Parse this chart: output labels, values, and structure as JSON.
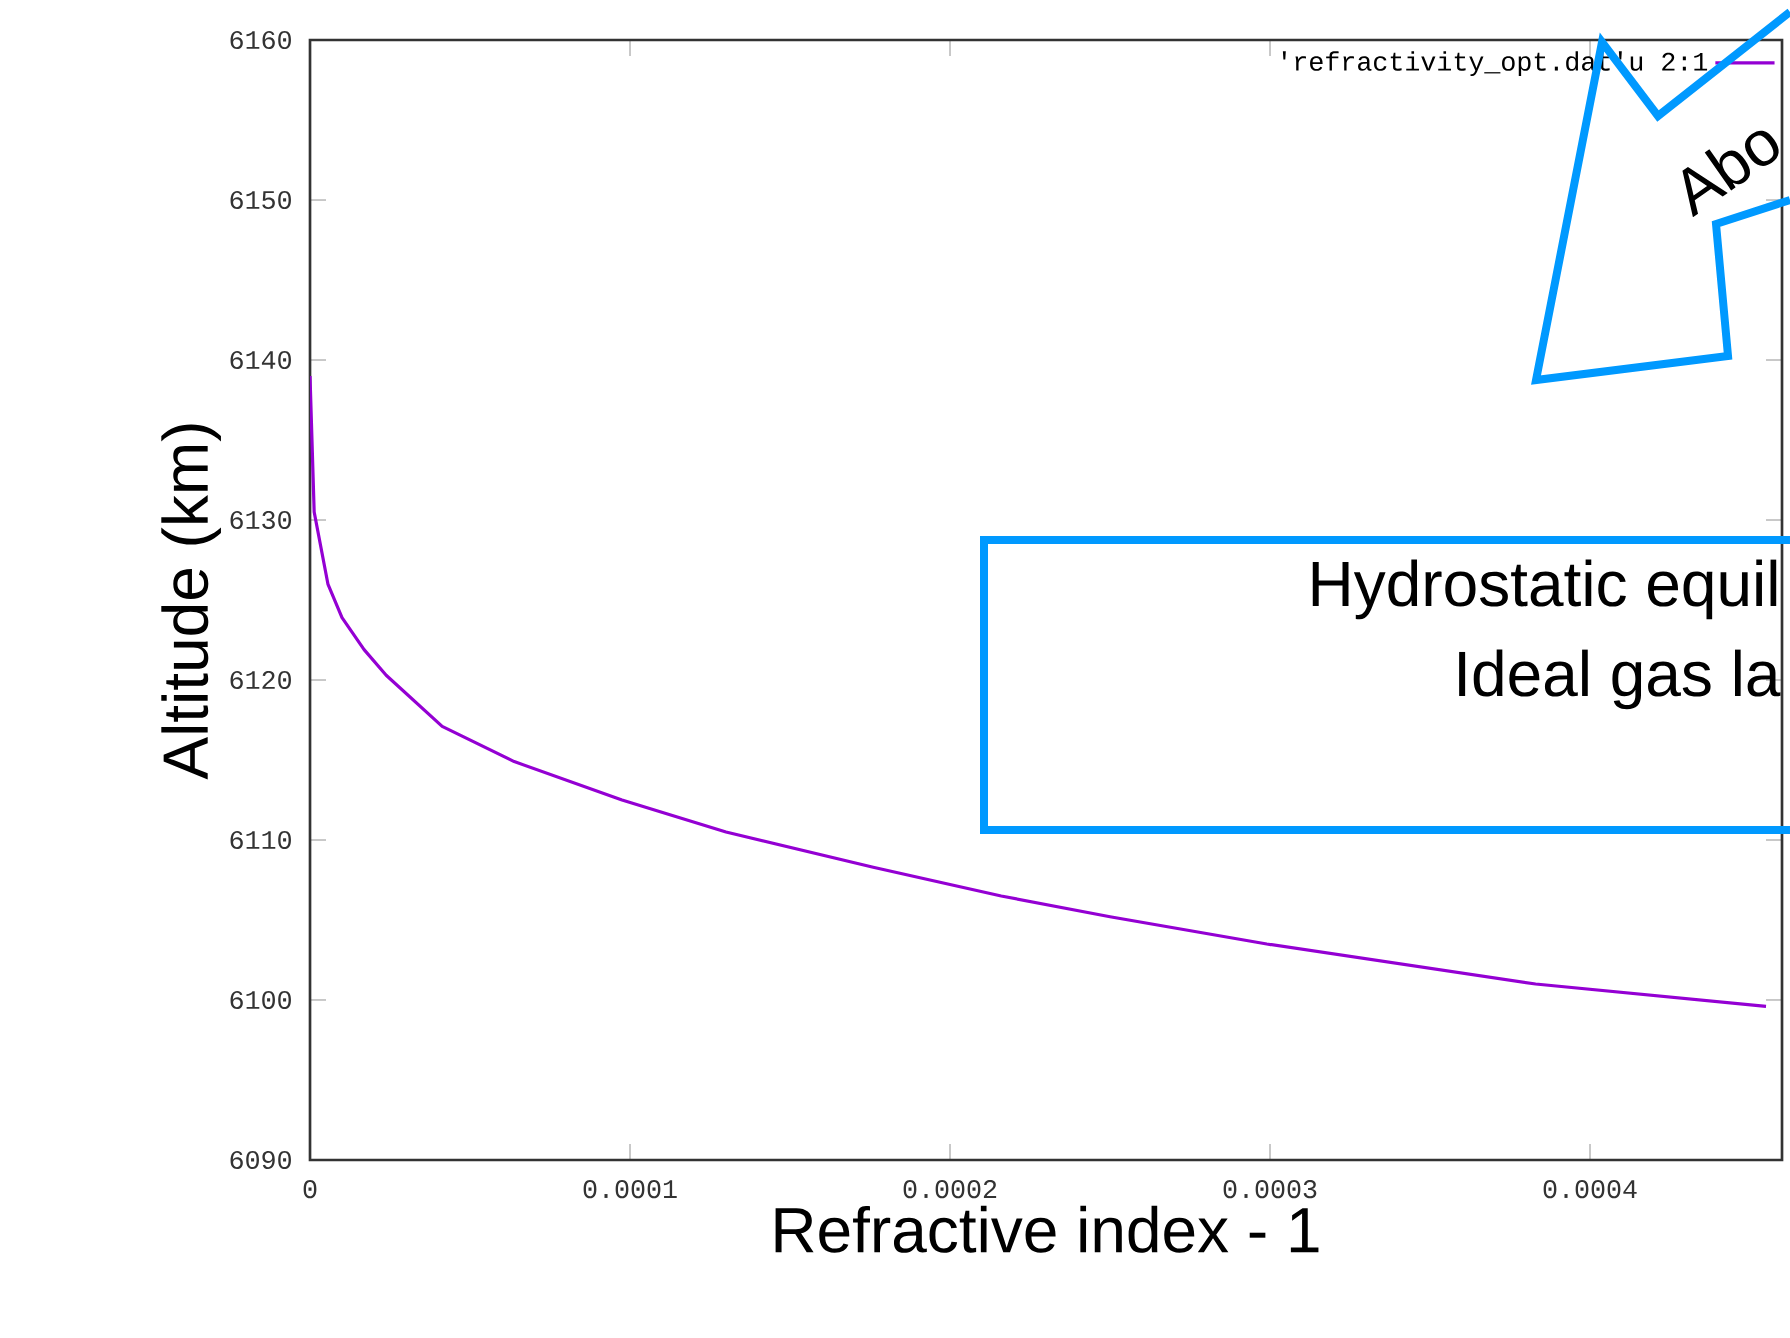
{
  "chart_data": {
    "type": "line",
    "xlabel": "Refractive index - 1",
    "ylabel": "Altitude (km)",
    "xlim": [
      0,
      0.00046
    ],
    "ylim": [
      6090,
      6160
    ],
    "xticks": [
      0,
      0.0001,
      0.0002,
      0.0003,
      0.0004
    ],
    "yticks": [
      6090,
      6100,
      6110,
      6120,
      6130,
      6140,
      6150,
      6160
    ],
    "legend": "top right",
    "marker": "none",
    "line_style": "solid",
    "annotations": [
      "Abo",
      "Hydrostatic equil",
      "Ideal gas la"
    ],
    "series": [
      {
        "name": "'refractivity_opt.dat'u 2:1",
        "color": "#9400d3",
        "x": [
          0,
          1.3e-06,
          5.6e-06,
          1e-05,
          1.69e-05,
          2.38e-05,
          4.13e-05,
          6.38e-05,
          9.75e-05,
          0.00013,
          0.000176,
          0.000216,
          0.00025,
          0.000299,
          0.000383,
          0.000455
        ],
        "values": [
          6139,
          6130.5,
          6126,
          6123.9,
          6121.9,
          6120.3,
          6117.1,
          6114.9,
          6112.5,
          6110.5,
          6108.3,
          6106.5,
          6105.2,
          6103.5,
          6101,
          6099.6
        ]
      }
    ]
  }
}
